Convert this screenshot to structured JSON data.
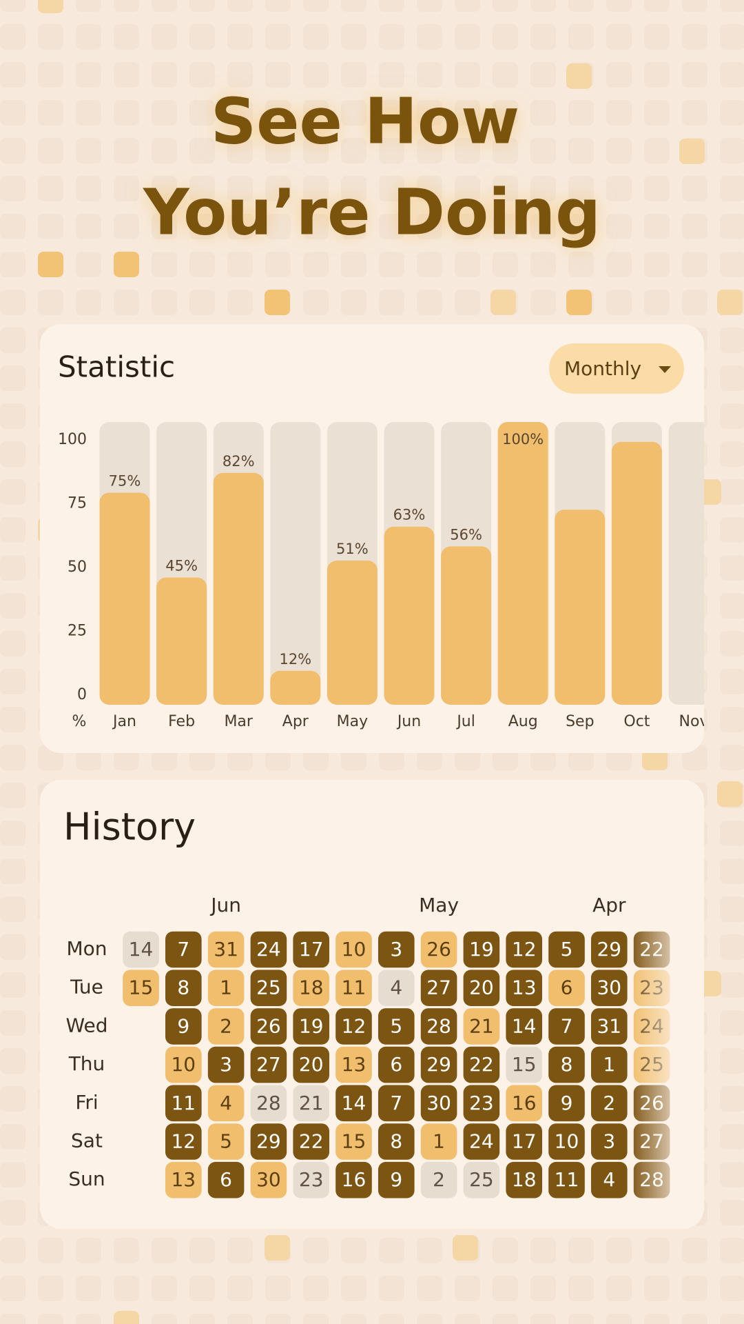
{
  "header": {
    "title": [
      "See How",
      "You’re Doing"
    ]
  },
  "statistic": {
    "title": "Statistic",
    "period": "Monthly"
  },
  "chart_data": {
    "type": "bar",
    "y_label": "%",
    "categories": [
      "Jan",
      "Feb",
      "Mar",
      "Apr",
      "May",
      "Jun",
      "Jul",
      "Aug",
      "Sep",
      "Oct",
      "Nov"
    ],
    "values": [
      75,
      45,
      82,
      12,
      51,
      63,
      56,
      100,
      69,
      93,
      null
    ],
    "value_labels": [
      "75%",
      "45%",
      "82%",
      "12%",
      "51%",
      "63%",
      "56%",
      "100%",
      null,
      null,
      null
    ],
    "color": "#f0be6c",
    "track_color": "#ebe0d4",
    "ylim": [
      0,
      100
    ],
    "yticks": [
      0,
      25,
      50,
      75,
      100
    ]
  },
  "history": {
    "title": "History",
    "months": [
      "Jun",
      "May",
      "Apr"
    ],
    "weekdays": [
      "Mon",
      "Tue",
      "Wed",
      "Thu",
      "Fri",
      "Sat",
      "Sun"
    ],
    "weeks": [
      {
        "days": [
          14,
          15,
          null,
          null,
          null,
          null,
          null
        ],
        "colors": [
          "#e6dcd0",
          "#f0be6c",
          null,
          null,
          null,
          null,
          null
        ]
      },
      {
        "days": [
          7,
          8,
          9,
          10,
          11,
          12,
          13
        ],
        "colors": [
          "#7d5513",
          "#7d5513",
          "#7d5513",
          "#f0be6c",
          "#7d5513",
          "#7d5513",
          "#f0be6c"
        ]
      },
      {
        "days": [
          31,
          1,
          2,
          3,
          4,
          5,
          6
        ],
        "colors": [
          "#f0be6c",
          "#f0be6c",
          "#f0be6c",
          "#7d5513",
          "#f0be6c",
          "#f0be6c",
          "#7d5513"
        ]
      },
      {
        "days": [
          24,
          25,
          26,
          27,
          28,
          29,
          30
        ],
        "colors": [
          "#7d5513",
          "#7d5513",
          "#7d5513",
          "#7d5513",
          "#e6dcd0",
          "#7d5513",
          "#f0be6c"
        ]
      },
      {
        "days": [
          17,
          18,
          19,
          20,
          21,
          22,
          23
        ],
        "colors": [
          "#7d5513",
          "#f0be6c",
          "#7d5513",
          "#7d5513",
          "#e6dcd0",
          "#7d5513",
          "#e6dcd0"
        ]
      },
      {
        "days": [
          10,
          11,
          12,
          13,
          14,
          15,
          16
        ],
        "colors": [
          "#f0be6c",
          "#f0be6c",
          "#7d5513",
          "#f0be6c",
          "#7d5513",
          "#f0be6c",
          "#7d5513"
        ]
      },
      {
        "days": [
          3,
          4,
          5,
          6,
          7,
          8,
          9
        ],
        "colors": [
          "#7d5513",
          "#e6dcd0",
          "#7d5513",
          "#7d5513",
          "#7d5513",
          "#7d5513",
          "#7d5513"
        ]
      },
      {
        "days": [
          26,
          27,
          28,
          29,
          30,
          1,
          2
        ],
        "colors": [
          "#f0be6c",
          "#7d5513",
          "#7d5513",
          "#7d5513",
          "#7d5513",
          "#f0be6c",
          "#e6dcd0"
        ]
      },
      {
        "days": [
          19,
          20,
          21,
          22,
          23,
          24,
          25
        ],
        "colors": [
          "#7d5513",
          "#7d5513",
          "#f0be6c",
          "#7d5513",
          "#7d5513",
          "#7d5513",
          "#e6dcd0"
        ]
      },
      {
        "days": [
          12,
          13,
          14,
          15,
          16,
          17,
          18
        ],
        "colors": [
          "#7d5513",
          "#7d5513",
          "#7d5513",
          "#e6dcd0",
          "#f0be6c",
          "#7d5513",
          "#7d5513"
        ]
      },
      {
        "days": [
          5,
          6,
          7,
          8,
          9,
          10,
          11
        ],
        "colors": [
          "#7d5513",
          "#f0be6c",
          "#7d5513",
          "#7d5513",
          "#7d5513",
          "#7d5513",
          "#7d5513"
        ]
      },
      {
        "days": [
          29,
          30,
          31,
          1,
          2,
          3,
          4
        ],
        "colors": [
          "#7d5513",
          "#7d5513",
          "#7d5513",
          "#7d5513",
          "#7d5513",
          "#7d5513",
          "#7d5513"
        ]
      },
      {
        "days": [
          22,
          23,
          24,
          25,
          26,
          27,
          28
        ],
        "colors": [
          "#7d5513",
          "#f0be6c",
          "#f0be6c",
          "#f0be6c",
          "#7d5513",
          "#7d5513",
          "#7d5513"
        ]
      }
    ]
  }
}
